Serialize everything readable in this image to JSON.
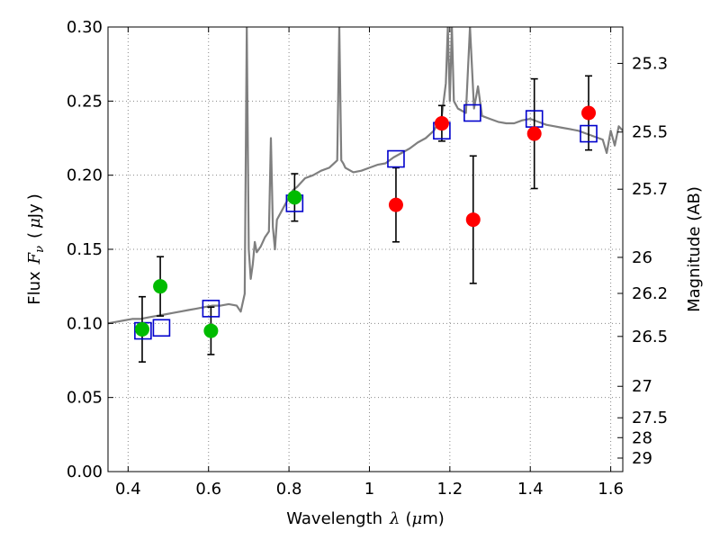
{
  "chart_data": {
    "type": "scatter",
    "xlabel": {
      "text": "Wavelength",
      "symbol": "λ",
      "unit_open": "(",
      "unit_mu": "μ",
      "unit_rest": "m)"
    },
    "ylabel": {
      "text": "Flux",
      "symbol": "F",
      "subscript": "ν",
      "unit_open": "(",
      "unit_mu": "μ",
      "unit_rest": "Jy",
      "unit_close": ")"
    },
    "y2label": "Magnitude (AB)",
    "xlim": [
      0.35,
      1.63
    ],
    "ylim": [
      0.0,
      0.3
    ],
    "grid": true,
    "x_ticks": [
      0.4,
      0.6,
      0.8,
      1.0,
      1.2,
      1.4,
      1.6
    ],
    "x_tick_labels": [
      "0.4",
      "0.6",
      "0.8",
      "1",
      "1.2",
      "1.4",
      "1.6"
    ],
    "y_ticks": [
      0.0,
      0.05,
      0.1,
      0.15,
      0.2,
      0.25,
      0.3
    ],
    "y_tick_labels": [
      "0.00",
      "0.05",
      "0.10",
      "0.15",
      "0.20",
      "0.25",
      "0.30"
    ],
    "mag_ticks": [
      {
        "label": "25.3",
        "mag": 25.3
      },
      {
        "label": "25.5",
        "mag": 25.5
      },
      {
        "label": "25.7",
        "mag": 25.7
      },
      {
        "label": "26",
        "mag": 26.0
      },
      {
        "label": "26.2",
        "mag": 26.2
      },
      {
        "label": "26.5",
        "mag": 26.5
      },
      {
        "label": "27",
        "mag": 27.0
      },
      {
        "label": "27.5",
        "mag": 27.5
      },
      {
        "label": "28",
        "mag": 28.0
      },
      {
        "label": "29",
        "mag": 29.0
      }
    ],
    "colors": {
      "spectrum": "#7f7f7f",
      "model_box": "#0000cc",
      "green_points": "#00bb00",
      "red_points": "#ff0000",
      "errorbar": "#000000",
      "grid": "#888888"
    },
    "spectrum": {
      "x": [
        0.35,
        0.37,
        0.39,
        0.41,
        0.43,
        0.45,
        0.47,
        0.49,
        0.51,
        0.53,
        0.55,
        0.57,
        0.59,
        0.61,
        0.63,
        0.65,
        0.67,
        0.68,
        0.69,
        0.695,
        0.7,
        0.705,
        0.71,
        0.715,
        0.72,
        0.73,
        0.74,
        0.75,
        0.755,
        0.76,
        0.765,
        0.77,
        0.78,
        0.79,
        0.8,
        0.81,
        0.82,
        0.83,
        0.84,
        0.86,
        0.88,
        0.9,
        0.92,
        0.925,
        0.93,
        0.935,
        0.94,
        0.96,
        0.98,
        1.0,
        1.02,
        1.04,
        1.06,
        1.08,
        1.1,
        1.12,
        1.14,
        1.16,
        1.18,
        1.19,
        1.195,
        1.2,
        1.205,
        1.21,
        1.22,
        1.24,
        1.25,
        1.26,
        1.27,
        1.28,
        1.3,
        1.32,
        1.34,
        1.36,
        1.38,
        1.4,
        1.42,
        1.44,
        1.46,
        1.48,
        1.5,
        1.52,
        1.54,
        1.56,
        1.58,
        1.59,
        1.6,
        1.61,
        1.62,
        1.63
      ],
      "y": [
        0.1,
        0.101,
        0.102,
        0.103,
        0.103,
        0.104,
        0.105,
        0.106,
        0.107,
        0.108,
        0.109,
        0.11,
        0.111,
        0.112,
        0.112,
        0.113,
        0.112,
        0.108,
        0.12,
        0.3,
        0.15,
        0.13,
        0.14,
        0.155,
        0.148,
        0.152,
        0.158,
        0.162,
        0.225,
        0.165,
        0.15,
        0.17,
        0.175,
        0.18,
        0.185,
        0.19,
        0.192,
        0.195,
        0.198,
        0.2,
        0.203,
        0.205,
        0.21,
        0.3,
        0.21,
        0.208,
        0.205,
        0.202,
        0.203,
        0.205,
        0.207,
        0.208,
        0.212,
        0.215,
        0.218,
        0.222,
        0.225,
        0.23,
        0.24,
        0.262,
        0.3,
        0.25,
        0.3,
        0.25,
        0.245,
        0.242,
        0.3,
        0.245,
        0.26,
        0.24,
        0.238,
        0.236,
        0.235,
        0.235,
        0.237,
        0.238,
        0.236,
        0.234,
        0.233,
        0.232,
        0.231,
        0.23,
        0.228,
        0.226,
        0.224,
        0.215,
        0.23,
        0.22,
        0.233,
        0.23
      ]
    },
    "series": [
      {
        "marker": "open-square",
        "x": [
          0.437,
          0.483,
          0.606,
          0.814,
          1.066,
          1.18,
          1.256,
          1.41,
          1.545
        ],
        "y": [
          0.095,
          0.097,
          0.11,
          0.181,
          0.211,
          0.23,
          0.242,
          0.238,
          0.228
        ]
      },
      {
        "marker": "circle",
        "color": "green",
        "x": [
          0.435,
          0.48,
          0.606,
          0.814
        ],
        "y": [
          0.096,
          0.125,
          0.095,
          0.185
        ],
        "yerr": [
          0.022,
          0.02,
          0.016,
          0.016
        ]
      },
      {
        "marker": "circle",
        "color": "red",
        "x": [
          1.066,
          1.18,
          1.258,
          1.41,
          1.545
        ],
        "y": [
          0.18,
          0.235,
          0.17,
          0.228,
          0.242
        ],
        "yerr": [
          0.025,
          0.012,
          0.043,
          0.037,
          0.025
        ]
      }
    ]
  }
}
